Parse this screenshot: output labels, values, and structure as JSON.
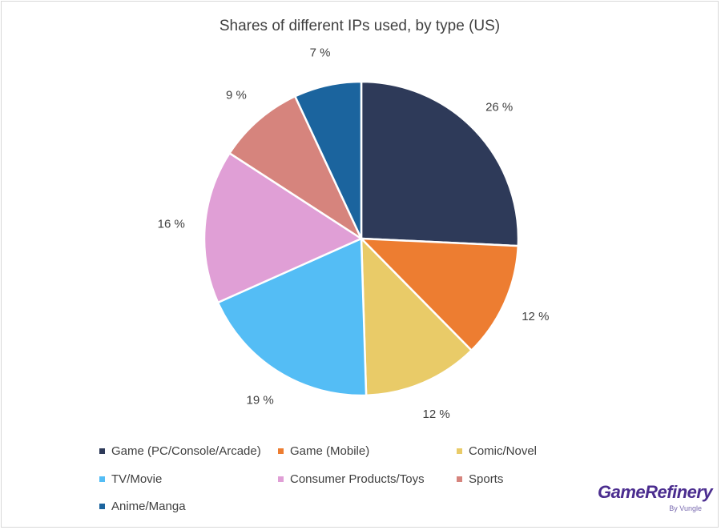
{
  "chart_data": {
    "type": "pie",
    "title": "Shares of different IPs used, by type (US)",
    "unit": "%",
    "slices": [
      {
        "label": "Game (PC/Console/Arcade)",
        "value": 26,
        "value_label": "26 %",
        "color": "#2e3a59"
      },
      {
        "label": "Game (Mobile)",
        "value": 12,
        "value_label": "12 %",
        "color": "#ed7d31"
      },
      {
        "label": "Comic/Novel",
        "value": 12,
        "value_label": "12 %",
        "color": "#e9cb68"
      },
      {
        "label": "TV/Movie",
        "value": 19,
        "value_label": "19 %",
        "color": "#54bdf5"
      },
      {
        "label": "Consumer Products/Toys",
        "value": 16,
        "value_label": "16 %",
        "color": "#e09fd6"
      },
      {
        "label": "Sports",
        "value": 9,
        "value_label": "9 %",
        "color": "#d6847d"
      },
      {
        "label": "Anime/Manga",
        "value": 7,
        "value_label": "7 %",
        "color": "#1b649e"
      }
    ],
    "legend_position": "bottom"
  },
  "branding": {
    "logo_text": "GameRefinery",
    "logo_subtext": "By Vungle",
    "logo_color": "#4b2d8f"
  }
}
